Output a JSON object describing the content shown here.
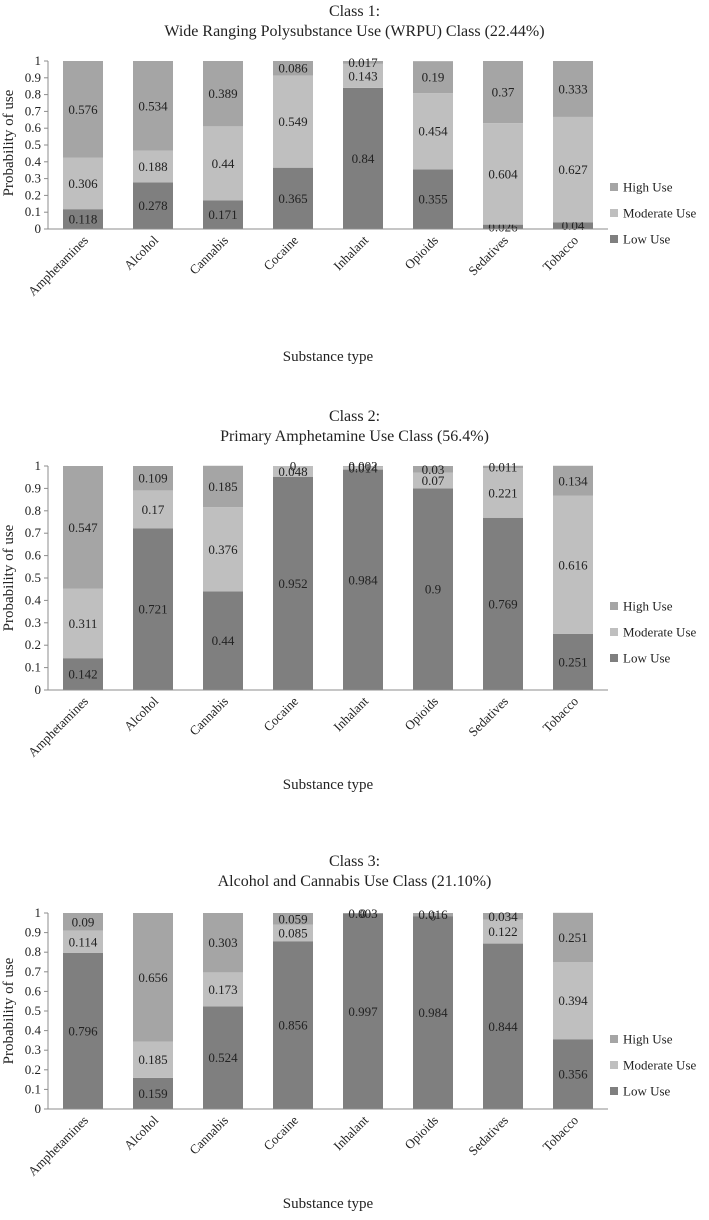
{
  "colors": {
    "low": "#7f7f7f",
    "moderate": "#bfbfbf",
    "high": "#a5a5a5",
    "axis": "#8c8c8c"
  },
  "chart_data": [
    {
      "type": "bar",
      "stacked": true,
      "title": "Class 1:",
      "subtitle": "Wide Ranging Polysubstance Use (WRPU) Class (22.44%)",
      "xlabel": "Substance type",
      "ylabel": "Probability of use",
      "ylim": [
        0,
        1
      ],
      "yticks": [
        "0",
        "0.1",
        "0.2",
        "0.3",
        "0.4",
        "0.5",
        "0.6",
        "0.7",
        "0.8",
        "0.9",
        "1"
      ],
      "legend_position": "right",
      "categories": [
        "Amphetamines",
        "Alcohol",
        "Cannabis",
        "Cocaine",
        "Inhalant",
        "Opioids",
        "Sedatives",
        "Tobacco"
      ],
      "series": [
        {
          "name": "Low Use",
          "color_key": "low",
          "values": [
            0.118,
            0.278,
            0.171,
            0.365,
            0.84,
            0.355,
            0.026,
            0.04
          ],
          "labels": [
            "0.118",
            "0.278",
            "0.171",
            "0.365",
            "0.84",
            "0.355",
            "0.026",
            "0.04"
          ]
        },
        {
          "name": "Moderate Use",
          "color_key": "moderate",
          "values": [
            0.306,
            0.188,
            0.44,
            0.549,
            0.143,
            0.454,
            0.604,
            0.627
          ],
          "labels": [
            "0.306",
            "0.188",
            "0.44",
            "0.549",
            "0.143",
            "0.454",
            "0.604",
            "0.627"
          ]
        },
        {
          "name": "High Use",
          "color_key": "high",
          "values": [
            0.576,
            0.534,
            0.389,
            0.086,
            0.017,
            0.19,
            0.37,
            0.333
          ],
          "labels": [
            "0.576",
            "0.534",
            "0.389",
            "0.086",
            "0.017",
            "0.19",
            "0.37",
            "0.333"
          ]
        }
      ]
    },
    {
      "type": "bar",
      "stacked": true,
      "title": "Class 2:",
      "subtitle": "Primary Amphetamine Use Class (56.4%)",
      "xlabel": "Substance type",
      "ylabel": "Probability of use",
      "ylim": [
        0,
        1
      ],
      "yticks": [
        "0",
        "0.1",
        "0.2",
        "0.3",
        "0.4",
        "0.5",
        "0.6",
        "0.7",
        "0.8",
        "0.9",
        "1"
      ],
      "legend_position": "right",
      "categories": [
        "Amphetamines",
        "Alcohol",
        "Cannabis",
        "Cocaine",
        "Inhalant",
        "Opioids",
        "Sedatives",
        "Tobacco"
      ],
      "series": [
        {
          "name": "Low Use",
          "color_key": "low",
          "values": [
            0.142,
            0.721,
            0.44,
            0.952,
            0.984,
            0.9,
            0.769,
            0.251
          ],
          "labels": [
            "0.142",
            "0.721",
            "0.44",
            "0.952",
            "0.984",
            "0.9",
            "0.769",
            "0.251"
          ]
        },
        {
          "name": "Moderate Use",
          "color_key": "moderate",
          "values": [
            0.311,
            0.17,
            0.376,
            0.048,
            0.014,
            0.07,
            0.221,
            0.616
          ],
          "labels": [
            "0.311",
            "0.17",
            "0.376",
            "0.048",
            "0.014",
            "0.07",
            "0.221",
            "0.616"
          ]
        },
        {
          "name": "High Use",
          "color_key": "high",
          "values": [
            0.547,
            0.109,
            0.185,
            0,
            0.002,
            0.03,
            0.011,
            0.134
          ],
          "labels": [
            "0.547",
            "0.109",
            "0.185",
            "0",
            "0.002",
            "0.03",
            "0.011",
            "0.134"
          ]
        }
      ]
    },
    {
      "type": "bar",
      "stacked": true,
      "title": "Class 3:",
      "subtitle": "Alcohol and Cannabis Use Class (21.10%)",
      "xlabel": "Substance type",
      "ylabel": "Probability of use",
      "ylim": [
        0,
        1
      ],
      "yticks": [
        "0",
        "0.1",
        "0.2",
        "0.3",
        "0.4",
        "0.5",
        "0.6",
        "0.7",
        "0.8",
        "0.9",
        "1"
      ],
      "legend_position": "right",
      "categories": [
        "Amphetamines",
        "Alcohol",
        "Cannabis",
        "Cocaine",
        "Inhalant",
        "Opioids",
        "Sedatives",
        "Tobacco"
      ],
      "series": [
        {
          "name": "Low Use",
          "color_key": "low",
          "values": [
            0.796,
            0.159,
            0.524,
            0.856,
            0.997,
            0.984,
            0.844,
            0.356
          ],
          "labels": [
            "0.796",
            "0.159",
            "0.524",
            "0.856",
            "0.997",
            "0.984",
            "0.844",
            "0.356"
          ]
        },
        {
          "name": "Moderate Use",
          "color_key": "moderate",
          "values": [
            0.114,
            0.185,
            0.173,
            0.085,
            0,
            0,
            0.122,
            0.394
          ],
          "labels": [
            "0.114",
            "0.185",
            "0.173",
            "0.085",
            "0",
            "0",
            "0.122",
            "0.394"
          ]
        },
        {
          "name": "High Use",
          "color_key": "high",
          "values": [
            0.09,
            0.656,
            0.303,
            0.059,
            0.003,
            0.016,
            0.034,
            0.251
          ],
          "labels": [
            "0.09",
            "0.656",
            "0.303",
            "0.059",
            "0.003",
            "0.016",
            "0.034",
            "0.251"
          ]
        }
      ]
    }
  ]
}
